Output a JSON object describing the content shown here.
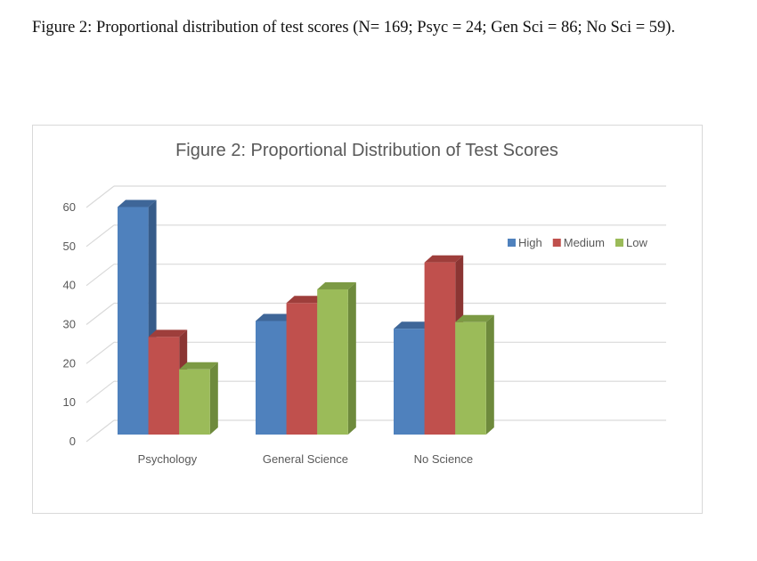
{
  "caption": "Figure 2: Proportional distribution of test scores (N= 169; Psyc = 24; Gen Sci = 86; No Sci = 59).",
  "chart_data": {
    "type": "bar",
    "style": "3d-clustered-column",
    "title": "Figure 2: Proportional Distribution of Test Scores",
    "xlabel": "",
    "ylabel": "",
    "ylim": [
      0,
      60
    ],
    "yticks": [
      0,
      10,
      20,
      30,
      40,
      50,
      60
    ],
    "grid": true,
    "legend_position": "right",
    "categories": [
      "Psychology",
      "General Science",
      "No Science"
    ],
    "series": [
      {
        "name": "High",
        "color": "#4F81BD",
        "side": "#375C8A",
        "top": "#3E6698",
        "values": [
          58.3,
          29.1,
          27.1
        ]
      },
      {
        "name": "Medium",
        "color": "#C0504D",
        "side": "#8B3533",
        "top": "#9E3E3B",
        "values": [
          25.0,
          33.7,
          44.1
        ]
      },
      {
        "name": "Low",
        "color": "#9BBB59",
        "side": "#6E8A3C",
        "top": "#7C9A44",
        "values": [
          16.7,
          37.2,
          28.8
        ]
      }
    ]
  }
}
